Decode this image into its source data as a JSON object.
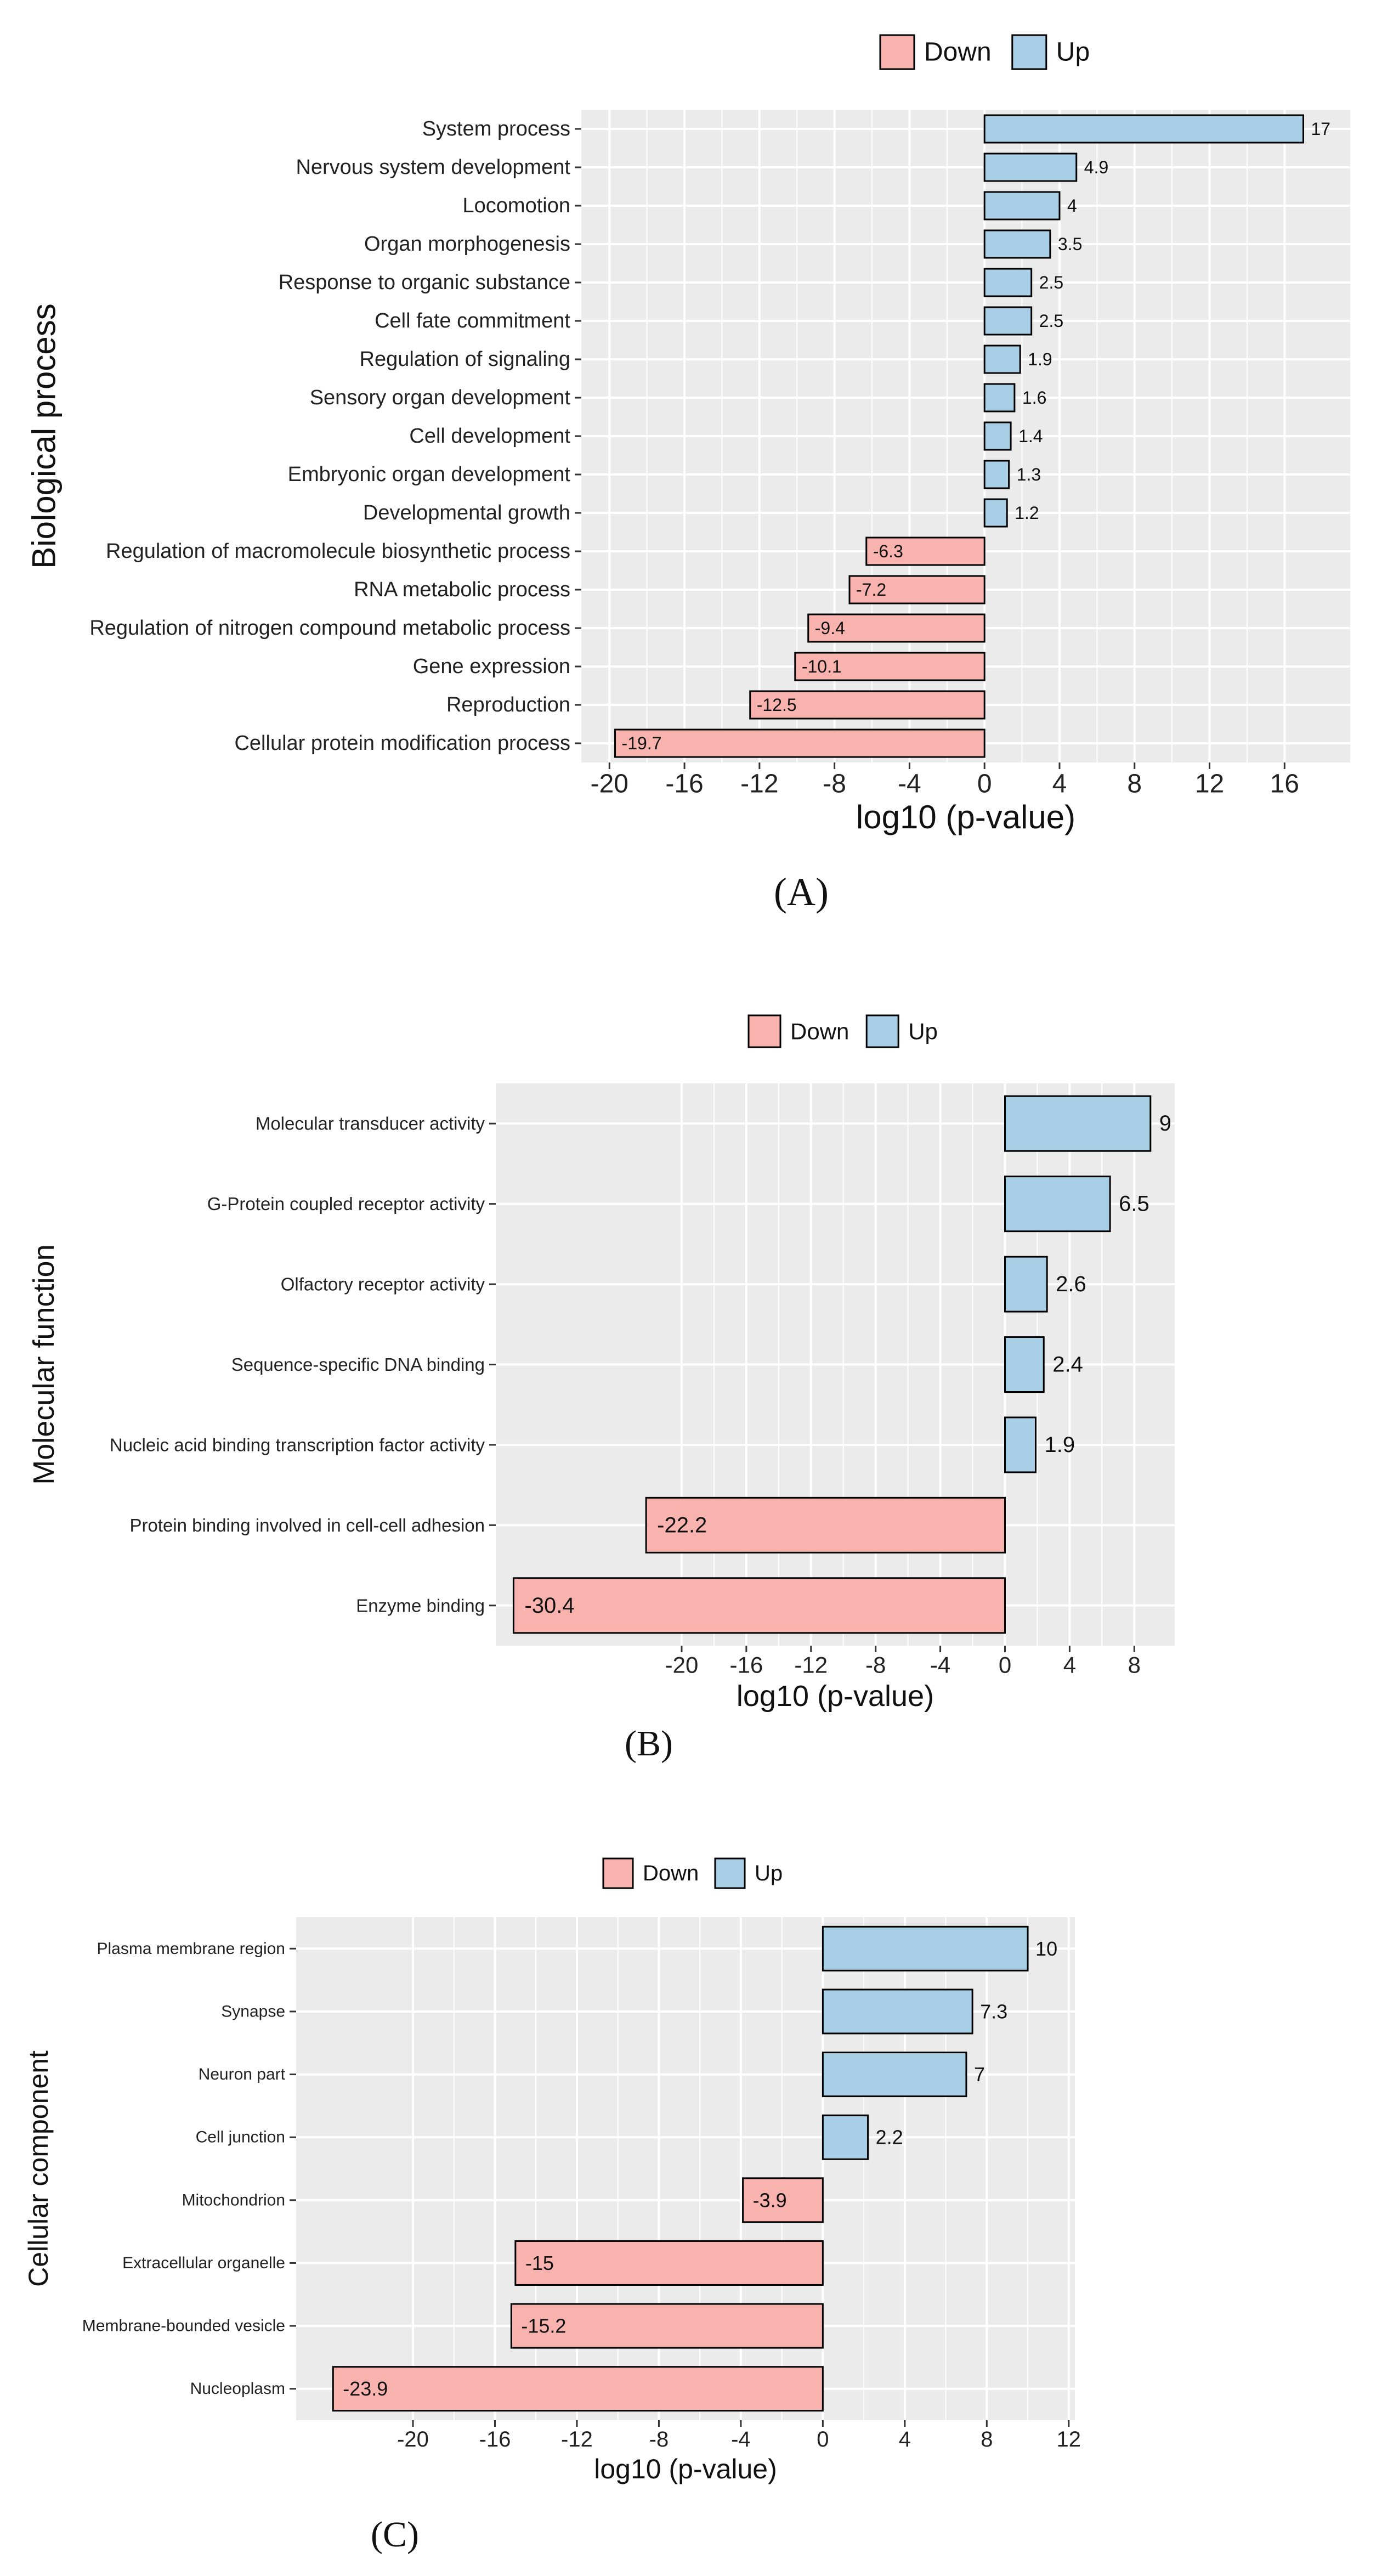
{
  "colors": {
    "down": "#F8B3AE",
    "up": "#A9CFE6",
    "panel_bg": "#EBEBEB",
    "grid": "#FFFFFF",
    "stroke": "#000000"
  },
  "legend": {
    "down": "Down",
    "up": "Up"
  },
  "chart_data": [
    {
      "type": "bar",
      "orientation": "horizontal",
      "panel_label": "(A)",
      "ylabel": "Biological process",
      "xlabel": "log10 (p-value)",
      "xlim": [
        -21.5,
        19.5
      ],
      "xticks": [
        -20,
        -16,
        -12,
        -8,
        -4,
        0,
        4,
        8,
        12,
        16
      ],
      "xtick_labels": [
        "-20",
        "-16",
        "-12",
        "-8",
        "-4",
        "0",
        "4",
        "8",
        "12",
        "16"
      ],
      "categories": [
        "System process",
        "Nervous system development",
        "Locomotion",
        "Organ morphogenesis",
        "Response to organic substance",
        "Cell fate commitment",
        "Regulation of signaling",
        "Sensory organ development",
        "Cell development",
        "Embryonic organ development",
        "Developmental growth",
        "Regulation of macromolecule biosynthetic process",
        "RNA metabolic process",
        "Regulation of nitrogen compound metabolic process",
        "Gene expression",
        "Reproduction",
        "Cellular protein modification process"
      ],
      "values": [
        17,
        4.9,
        4,
        3.5,
        2.5,
        2.5,
        1.9,
        1.6,
        1.4,
        1.3,
        1.2,
        -6.3,
        -7.2,
        -9.4,
        -10.1,
        -12.5,
        -19.7
      ],
      "value_labels": [
        "17",
        "4.9",
        "4",
        "3.5",
        "2.5",
        "2.5",
        "1.9",
        "1.6",
        "1.4",
        "1.3",
        "1.2",
        "-6.3",
        "-7.2",
        "-9.4",
        "-10.1",
        "-12.5",
        "-19.7"
      ],
      "legend_position": "top"
    },
    {
      "type": "bar",
      "orientation": "horizontal",
      "panel_label": "(B)",
      "ylabel": "Molecular function",
      "xlabel": "log10 (p-value)",
      "xlim": [
        -31.5,
        10.5
      ],
      "xticks": [
        -20,
        -16,
        -12,
        -8,
        -4,
        0,
        4,
        8
      ],
      "xtick_labels": [
        "-20",
        "-16",
        "-12",
        "-8",
        "-4",
        "0",
        "4",
        "8"
      ],
      "categories": [
        "Molecular transducer activity",
        "G-Protein coupled receptor activity",
        "Olfactory receptor activity",
        "Sequence-specific DNA binding",
        "Nucleic acid binding transcription factor activity",
        "Protein binding involved in cell-cell adhesion",
        "Enzyme binding"
      ],
      "values": [
        9,
        6.5,
        2.6,
        2.4,
        1.9,
        -22.2,
        -30.4
      ],
      "value_labels": [
        "9",
        "6.5",
        "2.6",
        "2.4",
        "1.9",
        "-22.2",
        "-30.4"
      ],
      "legend_position": "top"
    },
    {
      "type": "bar",
      "orientation": "horizontal",
      "panel_label": "(C)",
      "ylabel": "Cellular component",
      "xlabel": "log10 (p-value)",
      "xlim": [
        -25.7,
        12.3
      ],
      "xticks": [
        -20,
        -16,
        -12,
        -8,
        -4,
        0,
        4,
        8,
        12
      ],
      "xtick_labels": [
        "-20",
        "-16",
        "-12",
        "-8",
        "-4",
        "0",
        "4",
        "8",
        "12"
      ],
      "categories": [
        "Plasma membrane region",
        "Synapse",
        "Neuron part",
        "Cell junction",
        "Mitochondrion",
        "Extracellular organelle",
        "Membrane-bounded vesicle",
        "Nucleoplasm"
      ],
      "values": [
        10,
        7.3,
        7,
        2.2,
        -3.9,
        -15,
        -15.2,
        -23.9
      ],
      "value_labels": [
        "10",
        "7.3",
        "7",
        "2.2",
        "-3.9",
        "-15",
        "-15.2",
        "-23.9"
      ],
      "legend_position": "top"
    }
  ]
}
